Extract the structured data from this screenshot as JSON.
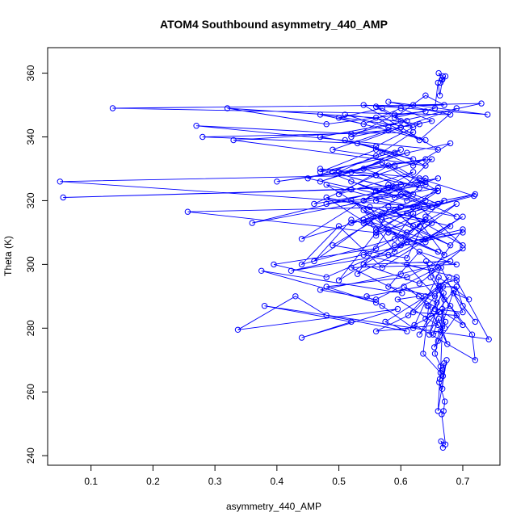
{
  "chart_data": {
    "type": "line",
    "title": "ATOM4 Southbound asymmetry_440_AMP",
    "xlabel": "asymmetry_440_AMP",
    "ylabel": "Theta (K)",
    "xlim": [
      0.03,
      0.76
    ],
    "ylim": [
      237,
      368
    ],
    "xticks": [
      0.1,
      0.2,
      0.3,
      0.4,
      0.5,
      0.6,
      0.7
    ],
    "yticks": [
      240,
      260,
      280,
      300,
      320,
      340,
      360
    ],
    "markers": "open-circle",
    "series_color": "#0000ff",
    "grid": false,
    "legend": "none",
    "series": [
      {
        "x": [
          0.668,
          0.665,
          0.672,
          0.666,
          0.669,
          0.671,
          0.662,
          0.667,
          0.67,
          0.664,
          0.66,
          0.674,
          0.668,
          0.663,
          0.667,
          0.655,
          0.66,
          0.672,
          0.664,
          0.667,
          0.671,
          0.652,
          0.661,
          0.675,
          0.645,
          0.636,
          0.664,
          0.669,
          0.64,
          0.68,
          0.67,
          0.66,
          0.715,
          0.72,
          0.622,
          0.662,
          0.646,
          0.668,
          0.643,
          0.629,
          0.595,
          0.66,
          0.56,
          0.612,
          0.64,
          0.678,
          0.62,
          0.69,
          0.654,
          0.686,
          0.63,
          0.658,
          0.605,
          0.7,
          0.648,
          0.641,
          0.662,
          0.69,
          0.7,
          0.72,
          0.685,
          0.71,
          0.661,
          0.655,
          0.7,
          0.665,
          0.62,
          0.57,
          0.545,
          0.69,
          0.742,
          0.38,
          0.52,
          0.44,
          0.595,
          0.337,
          0.43,
          0.48,
          0.61,
          0.575,
          0.69,
          0.61,
          0.655,
          0.58,
          0.63,
          0.69,
          0.52,
          0.602,
          0.375,
          0.56,
          0.48,
          0.61,
          0.7,
          0.63,
          0.54,
          0.68,
          0.6,
          0.47,
          0.56,
          0.66,
          0.61,
          0.7,
          0.423,
          0.58,
          0.61,
          0.48,
          0.395,
          0.56,
          0.63,
          0.54,
          0.65,
          0.7,
          0.59,
          0.5,
          0.56,
          0.64,
          0.61,
          0.49,
          0.55,
          0.66,
          0.58,
          0.53,
          0.64,
          0.7,
          0.57,
          0.5,
          0.44,
          0.59,
          0.62,
          0.67,
          0.58,
          0.55,
          0.68,
          0.64,
          0.52,
          0.46,
          0.57,
          0.65,
          0.6,
          0.69,
          0.61,
          0.54,
          0.59,
          0.64,
          0.67,
          0.56,
          0.58,
          0.62,
          0.68,
          0.52,
          0.6,
          0.64,
          0.48,
          0.56,
          0.63,
          0.7,
          0.61,
          0.72,
          0.59,
          0.64,
          0.54,
          0.66,
          0.56,
          0.256,
          0.6,
          0.54,
          0.64,
          0.44,
          0.58,
          0.66,
          0.52,
          0.61,
          0.69,
          0.56,
          0.63,
          0.718,
          0.57,
          0.48,
          0.62,
          0.66,
          0.36,
          0.59,
          0.055,
          0.52,
          0.64,
          0.48,
          0.6,
          0.65,
          0.05,
          0.56,
          0.62,
          0.49,
          0.58,
          0.65,
          0.52,
          0.61,
          0.64,
          0.47,
          0.56,
          0.6,
          0.66,
          0.54,
          0.62,
          0.5,
          0.58,
          0.64,
          0.46,
          0.56,
          0.64,
          0.4,
          0.59,
          0.66,
          0.52,
          0.61,
          0.47,
          0.57,
          0.63,
          0.54,
          0.6,
          0.45,
          0.59,
          0.65,
          0.5,
          0.57,
          0.62,
          0.68,
          0.47,
          0.56,
          0.62,
          0.51,
          0.59,
          0.64,
          0.33,
          0.58,
          0.49,
          0.56,
          0.62,
          0.28,
          0.53,
          0.6,
          0.66,
          0.27,
          0.52,
          0.61,
          0.47,
          0.56,
          0.63,
          0.51,
          0.58,
          0.64,
          0.5,
          0.57,
          0.62,
          0.47,
          0.54,
          0.6,
          0.65,
          0.52,
          0.59,
          0.64,
          0.48,
          0.32,
          0.56,
          0.63,
          0.69,
          0.6,
          0.54,
          0.74,
          0.58,
          0.68,
          0.135,
          0.62,
          0.73,
          0.6,
          0.56,
          0.67,
          0.64,
          0.59,
          0.655,
          0.66,
          0.663,
          0.668,
          0.661,
          0.666,
          0.672,
          0.664,
          0.667
        ],
        "y": [
          242.5,
          244.5,
          243.5,
          253,
          254,
          257,
          263,
          261,
          269,
          268,
          254,
          270,
          265,
          264,
          267,
          272,
          276,
          282,
          279,
          286,
          280,
          278,
          283,
          275,
          287,
          272,
          266,
          291,
          283,
          287,
          289,
          292,
          278,
          270,
          281,
          285,
          278,
          293,
          287,
          290,
          289,
          281,
          279,
          284,
          290,
          296,
          285,
          284,
          274,
          292,
          278,
          288,
          293,
          281,
          296,
          301,
          293,
          293,
          287,
          282,
          291,
          289,
          296,
          286,
          285,
          299,
          280,
          287,
          290,
          295,
          276.5,
          287,
          282,
          277,
          286,
          279.5,
          290,
          284,
          279,
          282,
          296,
          300,
          290,
          293,
          304,
          300,
          299,
          291,
          298,
          288,
          293,
          296,
          305,
          294,
          300,
          301,
          297,
          292,
          289,
          299,
          307,
          310,
          298,
          303,
          307,
          296,
          300,
          305,
          312,
          303,
          298,
          311,
          306,
          295,
          310,
          314,
          302,
          306,
          313,
          304,
          311,
          297,
          308,
          315,
          299,
          312,
          300,
          308,
          316,
          303,
          310,
          318,
          312,
          307,
          314,
          301,
          316,
          313,
          306,
          319,
          310,
          317,
          304,
          315,
          320,
          309,
          318,
          312,
          306,
          320,
          308,
          314,
          321,
          311,
          318,
          306,
          316,
          322,
          317,
          308,
          314,
          323,
          310,
          316.5,
          318,
          313,
          320,
          308,
          325,
          319,
          313,
          322,
          315,
          320,
          327,
          321.5,
          314,
          325,
          318,
          324,
          313,
          324,
          321,
          323.5,
          326,
          319,
          322,
          318,
          326,
          328,
          322,
          329,
          324,
          318,
          326,
          320,
          327,
          330,
          323,
          325,
          327,
          320,
          329,
          322,
          331,
          325,
          319,
          328,
          333,
          326,
          331,
          323,
          329,
          335,
          326,
          332,
          324,
          330,
          336,
          327,
          321,
          333,
          329,
          335,
          331,
          338,
          329,
          336,
          333,
          339,
          335,
          331,
          339,
          342,
          336,
          334,
          341.5,
          340,
          338,
          343,
          336,
          343.5,
          341,
          345,
          340,
          337,
          344,
          347,
          343,
          339,
          346,
          349,
          343,
          347,
          344,
          349,
          345,
          340,
          347,
          348,
          344,
          349,
          346,
          339,
          349,
          343,
          350,
          347,
          351,
          347,
          349,
          350,
          350.5,
          345,
          349.5,
          350,
          353,
          346,
          349,
          357,
          353,
          359,
          360,
          358,
          359,
          357,
          358
        ]
      }
    ]
  }
}
